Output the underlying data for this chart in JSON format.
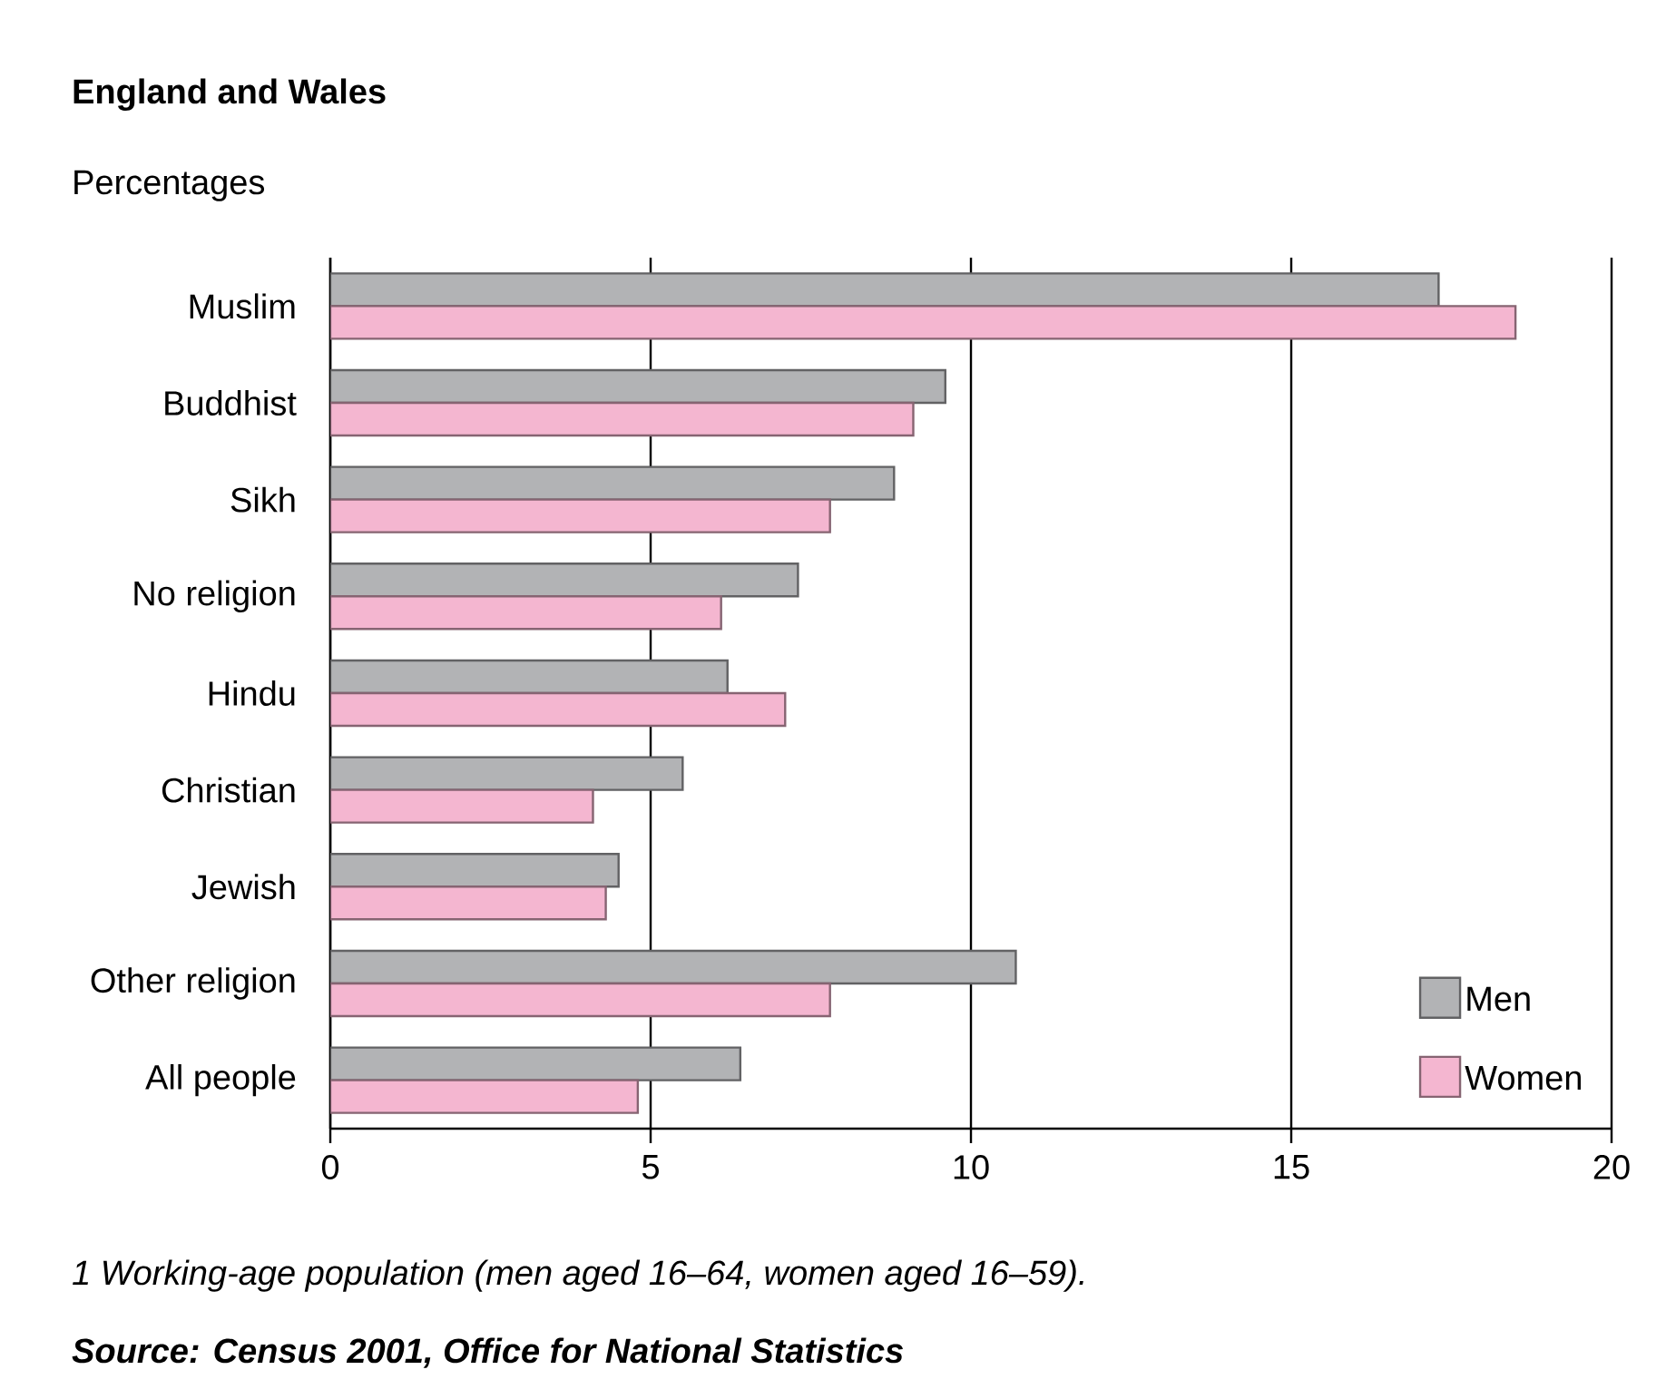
{
  "chart_data": {
    "type": "bar",
    "orientation": "horizontal",
    "title": "England and Wales",
    "subtitle": "Percentages",
    "categories": [
      "Muslim",
      "Buddhist",
      "Sikh",
      "No religion",
      "Hindu",
      "Christian",
      "Jewish",
      "Other religion",
      "All people"
    ],
    "series": [
      {
        "name": "Men",
        "color": "#b2b3b5",
        "values": [
          17.3,
          9.6,
          8.8,
          7.3,
          6.2,
          5.5,
          4.5,
          10.7,
          6.4
        ]
      },
      {
        "name": "Women",
        "color": "#f4b6d0",
        "values": [
          18.5,
          9.1,
          7.8,
          6.1,
          7.1,
          4.1,
          4.3,
          7.8,
          4.8
        ]
      }
    ],
    "xlim": [
      0,
      20
    ],
    "xticks": [
      0,
      5,
      10,
      15,
      20
    ],
    "grid": "x",
    "legend": "bottom right",
    "annotations": [
      "1   Working-age population (men aged 16–64, women aged 16–59).",
      "Source: Census 2001, Office for National Statistics"
    ]
  }
}
